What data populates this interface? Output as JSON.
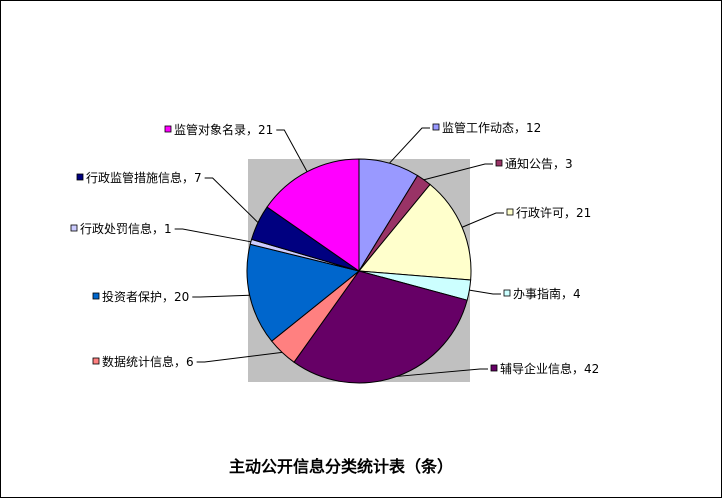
{
  "chart_data": {
    "type": "pie",
    "title": "主动公开信息分类统计表（条）",
    "start": "12 o'clock",
    "direction": "clockwise",
    "plot_background": "#C0C0C0",
    "slices": [
      {
        "label": "监管工作动态",
        "value": 12,
        "color": "#9999FF"
      },
      {
        "label": "通知公告",
        "value": 3,
        "color": "#993366"
      },
      {
        "label": "行政许可",
        "value": 21,
        "color": "#FFFFCC"
      },
      {
        "label": "办事指南",
        "value": 4,
        "color": "#CCFFFF"
      },
      {
        "label": "辅导企业信息",
        "value": 42,
        "color": "#660066"
      },
      {
        "label": "数据统计信息",
        "value": 6,
        "color": "#FF8080"
      },
      {
        "label": "投资者保护",
        "value": 20,
        "color": "#0066CC"
      },
      {
        "label": "行政处罚信息",
        "value": 1,
        "color": "#CCCCFF"
      },
      {
        "label": "行政监管措施信息",
        "value": 7,
        "color": "#000080"
      },
      {
        "label": "监管对象名录",
        "value": 21,
        "color": "#FF00FF"
      }
    ]
  }
}
